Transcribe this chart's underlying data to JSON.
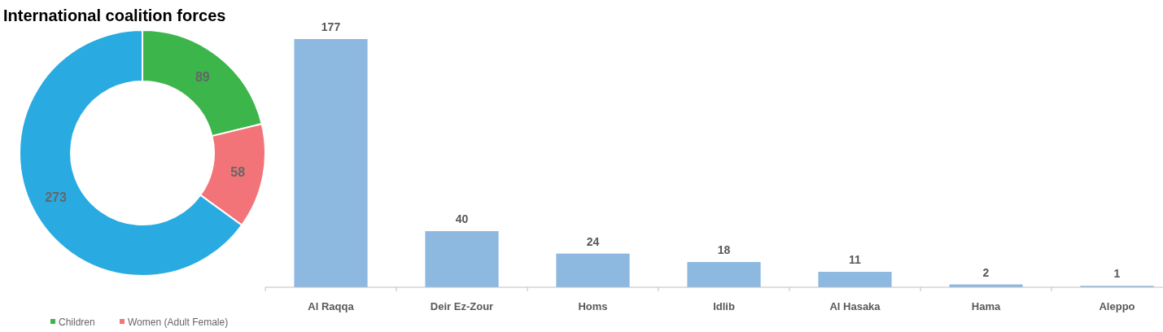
{
  "chart_data": [
    {
      "type": "donut",
      "title": "International coalition forces",
      "categories": [
        "Children",
        "Women (Adult Female)",
        null
      ],
      "values": [
        89,
        58,
        273
      ],
      "colors": [
        "#3cb54a",
        "#f27478",
        "#29abe2"
      ],
      "data_labels": true,
      "legend": "bottom left"
    },
    {
      "type": "bar",
      "categories": [
        "Al Raqqa",
        "Deir Ez-Zour",
        "Homs",
        "Idlib",
        "Al Hasaka",
        "Hama",
        "Aleppo"
      ],
      "values": [
        177,
        40,
        24,
        18,
        11,
        2,
        1
      ],
      "color": "#8db8e0",
      "data_labels": true
    }
  ]
}
